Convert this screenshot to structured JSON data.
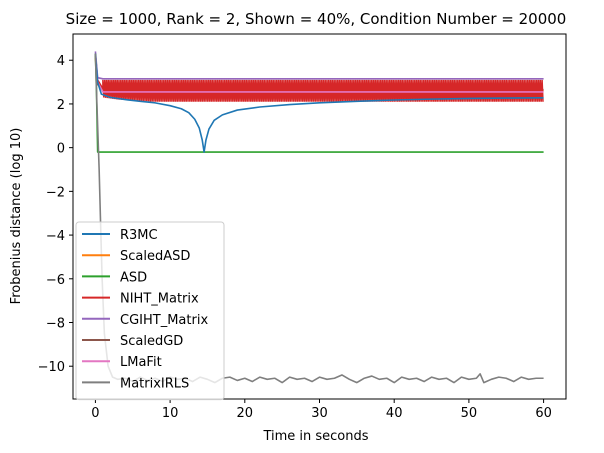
{
  "chart_data": {
    "type": "line",
    "title": "Size = 1000, Rank = 2, Shown = 40%, Condition Number = 20000",
    "xlabel": "Time in seconds",
    "ylabel": "Frobenius distance (log 10)",
    "xlim": [
      -3,
      63
    ],
    "ylim": [
      -11.5,
      5.2
    ],
    "xticks": [
      0,
      10,
      20,
      30,
      40,
      50,
      60
    ],
    "yticks": [
      4,
      2,
      0,
      -2,
      -4,
      -6,
      -8,
      -10
    ],
    "xtick_labels": [
      "0",
      "10",
      "20",
      "30",
      "40",
      "50",
      "60"
    ],
    "ytick_labels": [
      "4",
      "2",
      "0",
      "−2",
      "−4",
      "−6",
      "−8",
      "−10"
    ],
    "grid": false,
    "legend_position": "lower-left",
    "series": [
      {
        "name": "R3MC",
        "color": "#1f77b4",
        "style": "line",
        "points": [
          [
            0.0,
            4.3
          ],
          [
            0.3,
            3.0
          ],
          [
            0.8,
            2.45
          ],
          [
            2,
            2.3
          ],
          [
            4,
            2.2
          ],
          [
            6,
            2.12
          ],
          [
            8,
            2.05
          ],
          [
            10,
            1.92
          ],
          [
            11.5,
            1.78
          ],
          [
            12.5,
            1.6
          ],
          [
            13.3,
            1.3
          ],
          [
            13.9,
            0.9
          ],
          [
            14.3,
            0.35
          ],
          [
            14.55,
            -0.2
          ],
          [
            14.8,
            0.35
          ],
          [
            15.2,
            0.85
          ],
          [
            15.9,
            1.25
          ],
          [
            17,
            1.5
          ],
          [
            19,
            1.72
          ],
          [
            22,
            1.86
          ],
          [
            26,
            1.97
          ],
          [
            30,
            2.05
          ],
          [
            35,
            2.12
          ],
          [
            40,
            2.18
          ],
          [
            45,
            2.22
          ],
          [
            50,
            2.25
          ],
          [
            55,
            2.27
          ],
          [
            60,
            2.28
          ]
        ]
      },
      {
        "name": "ScaledASD",
        "color": "#ff7f0e",
        "style": "line",
        "points": [
          [
            0.0,
            4.1
          ],
          [
            0.3,
            2.9
          ],
          [
            1,
            2.6
          ],
          [
            60,
            2.6
          ]
        ]
      },
      {
        "name": "ASD",
        "color": "#2ca02c",
        "style": "line",
        "points": [
          [
            0.0,
            4.3
          ],
          [
            0.15,
            2.5
          ],
          [
            0.3,
            -0.2
          ],
          [
            60,
            -0.2
          ]
        ]
      },
      {
        "name": "NIHT_Matrix",
        "color": "#d62728",
        "style": "band",
        "points": [
          [
            0.0,
            4.3
          ],
          [
            0.3,
            3.1
          ],
          [
            1,
            2.7
          ],
          [
            60,
            2.7
          ]
        ],
        "band_upper": 3.1,
        "band_lower_points": [
          [
            1,
            2.3
          ],
          [
            3,
            2.2
          ],
          [
            8,
            2.1
          ],
          [
            60,
            2.1
          ]
        ]
      },
      {
        "name": "CGIHT_Matrix",
        "color": "#9467bd",
        "style": "line",
        "points": [
          [
            0.0,
            4.4
          ],
          [
            0.3,
            3.2
          ],
          [
            1,
            3.15
          ],
          [
            60,
            3.15
          ]
        ]
      },
      {
        "name": "ScaledGD",
        "color": "#8c564b",
        "style": "line",
        "points": [
          [
            0.0,
            4.2
          ],
          [
            0.3,
            2.9
          ],
          [
            1,
            2.65
          ],
          [
            60,
            2.65
          ]
        ]
      },
      {
        "name": "LMaFit",
        "color": "#e377c2",
        "style": "line",
        "points": [
          [
            0.0,
            4.3
          ],
          [
            0.3,
            3.0
          ],
          [
            1,
            2.55
          ],
          [
            60,
            2.55
          ]
        ]
      },
      {
        "name": "MatrixIRLS",
        "color": "#7f7f7f",
        "style": "line",
        "points": [
          [
            0.0,
            4.3
          ],
          [
            0.2,
            2.0
          ],
          [
            0.5,
            -1.0
          ],
          [
            0.75,
            -4.2
          ],
          [
            0.9,
            -6.0
          ],
          [
            1.2,
            -8.5
          ],
          [
            1.7,
            -10.0
          ],
          [
            2.3,
            -10.5
          ],
          [
            3,
            -10.6
          ],
          [
            4,
            -10.55
          ],
          [
            5,
            -10.7
          ],
          [
            6,
            -10.5
          ],
          [
            7,
            -10.65
          ],
          [
            8,
            -10.55
          ],
          [
            9,
            -10.7
          ],
          [
            10,
            -10.5
          ],
          [
            11,
            -10.6
          ],
          [
            12,
            -10.55
          ],
          [
            13,
            -10.7
          ],
          [
            14,
            -10.5
          ],
          [
            15,
            -10.6
          ],
          [
            16,
            -10.75
          ],
          [
            17,
            -10.55
          ],
          [
            18,
            -10.5
          ],
          [
            19,
            -10.65
          ],
          [
            20,
            -10.55
          ],
          [
            21,
            -10.7
          ],
          [
            22,
            -10.5
          ],
          [
            23,
            -10.6
          ],
          [
            24,
            -10.55
          ],
          [
            25,
            -10.75
          ],
          [
            26,
            -10.5
          ],
          [
            27,
            -10.6
          ],
          [
            28,
            -10.55
          ],
          [
            29,
            -10.7
          ],
          [
            30,
            -10.5
          ],
          [
            31,
            -10.6
          ],
          [
            32,
            -10.55
          ],
          [
            33,
            -10.4
          ],
          [
            34,
            -10.6
          ],
          [
            35,
            -10.75
          ],
          [
            36,
            -10.55
          ],
          [
            37,
            -10.45
          ],
          [
            38,
            -10.6
          ],
          [
            39,
            -10.55
          ],
          [
            40,
            -10.75
          ],
          [
            41,
            -10.5
          ],
          [
            42,
            -10.6
          ],
          [
            43,
            -10.55
          ],
          [
            44,
            -10.7
          ],
          [
            45,
            -10.5
          ],
          [
            46,
            -10.6
          ],
          [
            47,
            -10.55
          ],
          [
            48,
            -10.75
          ],
          [
            49,
            -10.5
          ],
          [
            50,
            -10.6
          ],
          [
            51,
            -10.55
          ],
          [
            51.5,
            -10.35
          ],
          [
            52,
            -10.75
          ],
          [
            53,
            -10.6
          ],
          [
            54,
            -10.5
          ],
          [
            55,
            -10.55
          ],
          [
            56,
            -10.7
          ],
          [
            57,
            -10.5
          ],
          [
            58,
            -10.6
          ],
          [
            59,
            -10.55
          ],
          [
            60,
            -10.55
          ]
        ]
      }
    ]
  }
}
